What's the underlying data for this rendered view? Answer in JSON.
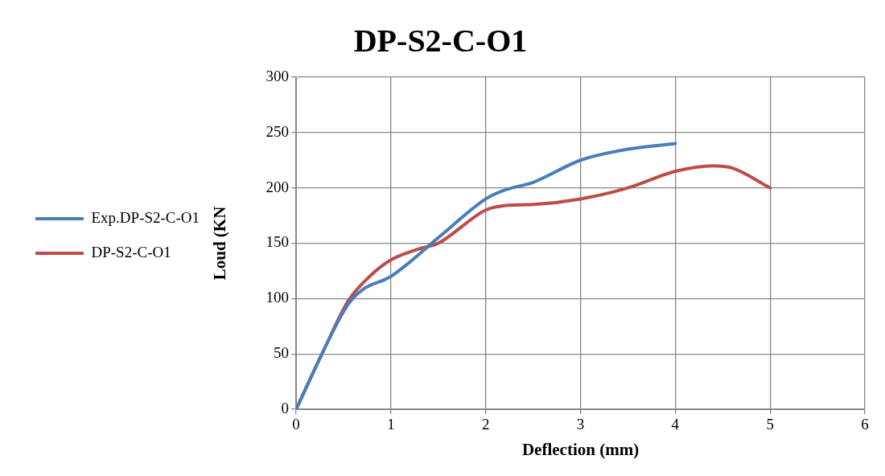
{
  "chart_data": {
    "type": "line",
    "title": "DP-S2-C-O1",
    "xlabel": "Deflection (mm)",
    "ylabel": "Loud (KN",
    "xlim": [
      0,
      6
    ],
    "xticks": [
      0,
      1,
      2,
      3,
      4,
      5,
      6
    ],
    "ylim": [
      0,
      300
    ],
    "yticks": [
      0,
      50,
      100,
      150,
      200,
      250,
      300
    ],
    "grid": true,
    "legend": "left",
    "marker": "none",
    "line_style": "solid",
    "series": [
      {
        "name": "Exp.DP-S2-C-O1",
        "color": "#4a7ebb",
        "x": [
          0,
          0.3,
          0.55,
          0.7,
          1,
          1.5,
          2,
          2.2,
          2.5,
          3,
          3.5,
          4
        ],
        "values": [
          0,
          55,
          95,
          108,
          120,
          155,
          190,
          198,
          205,
          225,
          235,
          240
        ]
      },
      {
        "name": "DP-S2-C-O1",
        "color": "#be4b48",
        "x": [
          0,
          0.3,
          0.55,
          0.8,
          1,
          1.3,
          1.5,
          2,
          2.2,
          2.5,
          3,
          3.5,
          4,
          4.4,
          4.6,
          5
        ],
        "values": [
          0,
          55,
          98,
          122,
          135,
          145,
          150,
          180,
          184,
          185,
          190,
          200,
          215,
          220,
          218,
          200
        ]
      }
    ]
  }
}
